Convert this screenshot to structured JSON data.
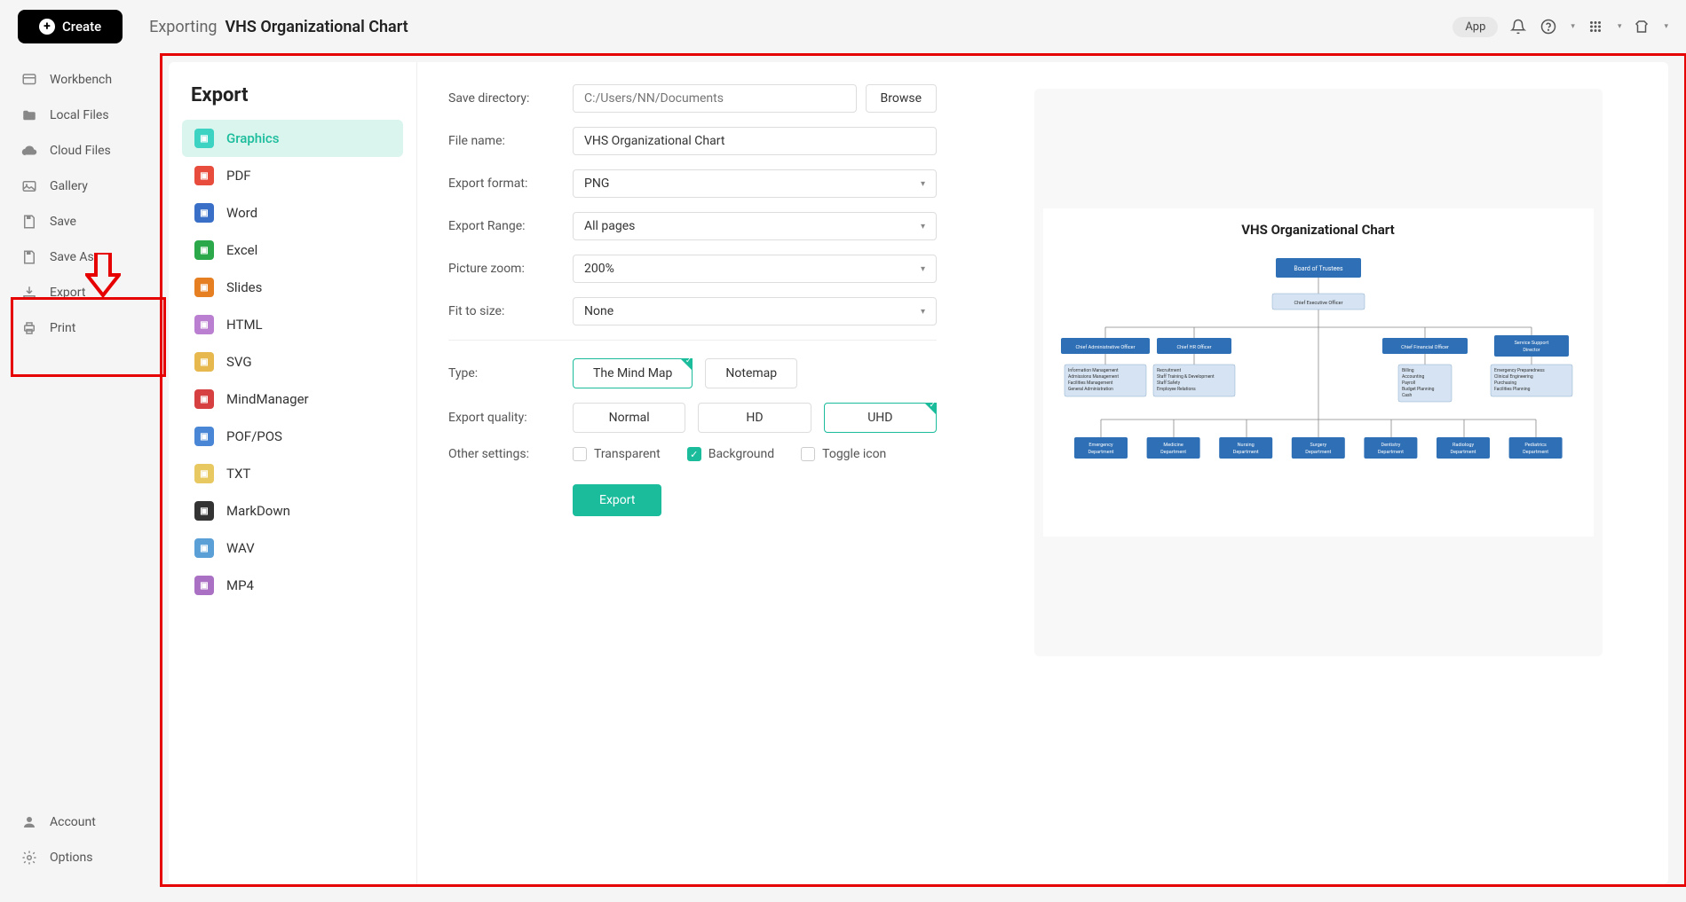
{
  "topbar": {
    "create_label": "Create",
    "breadcrumb_prefix": "Exporting",
    "breadcrumb_title": "VHS Organizational Chart",
    "app_pill": "App"
  },
  "sidebar": {
    "items": [
      {
        "label": "Workbench"
      },
      {
        "label": "Local Files"
      },
      {
        "label": "Cloud Files"
      },
      {
        "label": "Gallery"
      },
      {
        "label": "Save"
      },
      {
        "label": "Save As"
      },
      {
        "label": "Export"
      },
      {
        "label": "Print"
      }
    ],
    "bottom": [
      {
        "label": "Account"
      },
      {
        "label": "Options"
      }
    ]
  },
  "export": {
    "title": "Export",
    "formats": [
      {
        "label": "Graphics",
        "color": "#3dd3c3",
        "active": true
      },
      {
        "label": "PDF",
        "color": "#e74c3c"
      },
      {
        "label": "Word",
        "color": "#3a6fc7"
      },
      {
        "label": "Excel",
        "color": "#2ba84a"
      },
      {
        "label": "Slides",
        "color": "#e67e22"
      },
      {
        "label": "HTML",
        "color": "#bb7fd1"
      },
      {
        "label": "SVG",
        "color": "#e6b84d"
      },
      {
        "label": "MindManager",
        "color": "#d64040"
      },
      {
        "label": "POF/POS",
        "color": "#4a86d6"
      },
      {
        "label": "TXT",
        "color": "#e8c860"
      },
      {
        "label": "MarkDown",
        "color": "#333333"
      },
      {
        "label": "WAV",
        "color": "#5a9fd6"
      },
      {
        "label": "MP4",
        "color": "#a970c4"
      }
    ]
  },
  "form": {
    "save_directory_label": "Save directory:",
    "save_directory_placeholder": "C:/Users/NN/Documents",
    "browse_label": "Browse",
    "file_name_label": "File name:",
    "file_name_value": "VHS Organizational Chart",
    "export_format_label": "Export format:",
    "export_format_value": "PNG",
    "export_range_label": "Export Range:",
    "export_range_value": "All pages",
    "picture_zoom_label": "Picture zoom:",
    "picture_zoom_value": "200%",
    "fit_to_size_label": "Fit to size:",
    "fit_to_size_value": "None",
    "type_label": "Type:",
    "type_options": [
      {
        "label": "The Mind Map",
        "selected": true
      },
      {
        "label": "Notemap",
        "selected": false
      }
    ],
    "quality_label": "Export quality:",
    "quality_options": [
      {
        "label": "Normal",
        "selected": false
      },
      {
        "label": "HD",
        "selected": false
      },
      {
        "label": "UHD",
        "selected": true
      }
    ],
    "other_label": "Other settings:",
    "checks": [
      {
        "label": "Transparent",
        "checked": false
      },
      {
        "label": "Background",
        "checked": true
      },
      {
        "label": "Toggle icon",
        "checked": false
      }
    ],
    "export_button": "Export"
  },
  "preview": {
    "chart_title": "VHS Organizational Chart",
    "nodes": {
      "bot": "Board of Trustees",
      "ceo": "Chief Executive Officer",
      "cao": "Chief Administrative Officer",
      "chro": "Chief HR Officer",
      "cfo": "Chief Financial Officer",
      "ssd1": "Service Support",
      "ssd2": "Director",
      "admin_detail": [
        "Information Management",
        "Admissions Management",
        "Facilities Management",
        "General Administration"
      ],
      "hr_detail": [
        "Recruitment",
        "Staff Training & Development",
        "Staff Safety",
        "Employee Relations"
      ],
      "fin_detail": [
        "Billing",
        "Accounting",
        "Payroll",
        "Budget Planning",
        "Cash"
      ],
      "ssd_detail": [
        "Emergency Preparedness",
        "Clinical Engineering",
        "Purchasing",
        "Facilities Planning"
      ],
      "depts": [
        "Emergency",
        "Medicine",
        "Nursing",
        "Surgery",
        "Dentistry",
        "Radiology",
        "Pediatrics"
      ],
      "dept_sub": "Department"
    },
    "colors": {
      "primary": "#2e6fb5",
      "light": "#d5e3f2"
    }
  }
}
